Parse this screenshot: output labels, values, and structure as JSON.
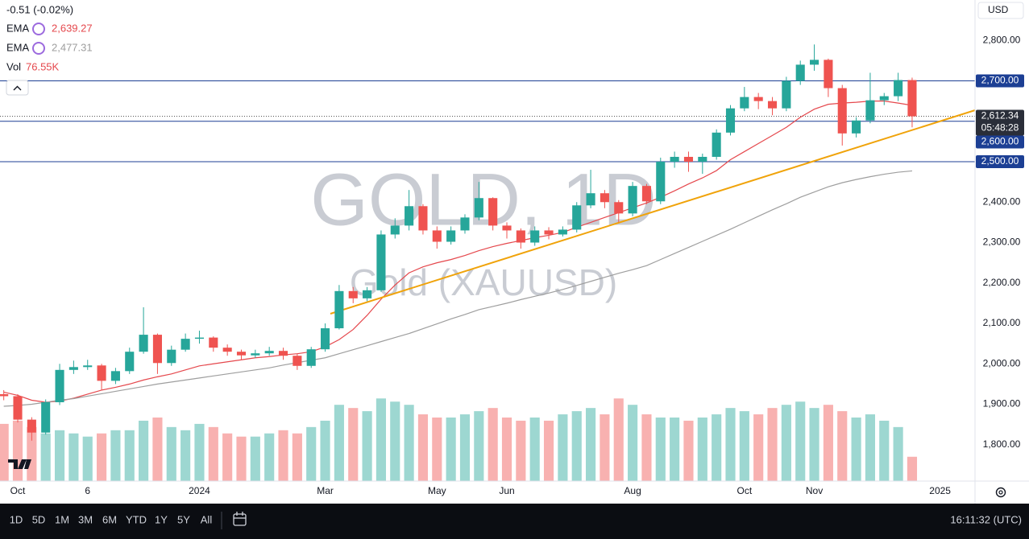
{
  "chart_data": {
    "type": "candlestick",
    "title": "GOLD, 1D",
    "subtitle": "Gold (XAUUSD)",
    "change_label": "-0.51 (-0.02%)",
    "currency": "USD",
    "up_color": "#26a69a",
    "down_color": "#ef5350",
    "categories": [
      null,
      "Oct",
      null,
      null,
      null,
      null,
      "6",
      null,
      null,
      null,
      null,
      null,
      null,
      null,
      "2024",
      null,
      null,
      null,
      null,
      null,
      null,
      null,
      null,
      "Mar",
      null,
      null,
      null,
      null,
      null,
      null,
      null,
      "May",
      null,
      null,
      null,
      null,
      "Jun",
      null,
      null,
      null,
      null,
      null,
      null,
      null,
      null,
      "Aug",
      null,
      null,
      null,
      null,
      null,
      null,
      null,
      "Oct",
      null,
      null,
      null,
      null,
      "Nov",
      null,
      null,
      null,
      null,
      null,
      null,
      null,
      null,
      "2025",
      null,
      null
    ],
    "open": [
      1925,
      1920,
      1862,
      1830,
      1905,
      1985,
      1992,
      1996,
      1958,
      1982,
      2030,
      2072,
      2002,
      2035,
      2062,
      2065,
      2040,
      2030,
      2021,
      2026,
      2032,
      2020,
      1995,
      2036,
      2088,
      2180,
      2162,
      2182,
      2320,
      2342,
      2390,
      2330,
      2302,
      2330,
      2362,
      2410,
      2342,
      2330,
      2300,
      2330,
      2320,
      2332,
      2392,
      2422,
      2400,
      2372,
      2440,
      2402,
      2500,
      2512,
      2500,
      2512,
      2572,
      2632,
      2660,
      2650,
      2632,
      2700,
      2740,
      2752,
      2682,
      2570,
      2602,
      2652,
      2662,
      2702,
      null,
      null,
      null,
      null
    ],
    "high": [
      1935,
      1925,
      1868,
      1912,
      2000,
      2008,
      2010,
      2000,
      1990,
      2040,
      2140,
      2075,
      2045,
      2075,
      2082,
      2068,
      2048,
      2035,
      2035,
      2042,
      2040,
      2025,
      2042,
      2100,
      2195,
      2190,
      2190,
      2330,
      2360,
      2430,
      2395,
      2340,
      2340,
      2370,
      2450,
      2412,
      2350,
      2335,
      2340,
      2338,
      2340,
      2400,
      2480,
      2430,
      2405,
      2450,
      2445,
      2510,
      2525,
      2525,
      2520,
      2580,
      2640,
      2685,
      2670,
      2660,
      2710,
      2750,
      2790,
      2755,
      2690,
      2610,
      2720,
      2670,
      2720,
      2708,
      null,
      null,
      null,
      null
    ],
    "low": [
      1910,
      1855,
      1810,
      1825,
      1898,
      1975,
      1985,
      1935,
      1950,
      1975,
      2025,
      1975,
      1995,
      2030,
      2050,
      2030,
      2020,
      2010,
      2015,
      2020,
      2010,
      1985,
      1990,
      2030,
      2085,
      2150,
      2155,
      2178,
      2310,
      2330,
      2320,
      2285,
      2295,
      2322,
      2355,
      2330,
      2310,
      2285,
      2292,
      2308,
      2315,
      2325,
      2385,
      2385,
      2350,
      2365,
      2395,
      2395,
      2485,
      2475,
      2470,
      2505,
      2565,
      2625,
      2630,
      2615,
      2625,
      2690,
      2725,
      2660,
      2540,
      2560,
      2595,
      2640,
      2650,
      2585,
      null,
      null,
      null,
      null
    ],
    "close": [
      1920,
      1862,
      1830,
      1905,
      1985,
      1992,
      1996,
      1958,
      1982,
      2030,
      2072,
      2002,
      2035,
      2062,
      2065,
      2040,
      2030,
      2021,
      2026,
      2032,
      2020,
      1995,
      2036,
      2088,
      2180,
      2162,
      2182,
      2320,
      2342,
      2390,
      2330,
      2302,
      2330,
      2362,
      2410,
      2342,
      2330,
      2300,
      2330,
      2320,
      2332,
      2392,
      2422,
      2400,
      2372,
      2440,
      2402,
      2500,
      2512,
      2500,
      2512,
      2572,
      2632,
      2660,
      2650,
      2632,
      2700,
      2740,
      2752,
      2682,
      2570,
      2602,
      2652,
      2662,
      2702,
      2612.34,
      null,
      null,
      null,
      null
    ],
    "last_price_label": "2,612.34",
    "countdown": "05:48:28",
    "volume": {
      "name": "Vol",
      "value_label": "76.55K",
      "ylim": [
        0,
        400
      ],
      "values": [
        180,
        190,
        170,
        150,
        160,
        150,
        140,
        150,
        160,
        160,
        190,
        200,
        170,
        160,
        180,
        170,
        150,
        140,
        140,
        150,
        160,
        150,
        170,
        190,
        240,
        230,
        220,
        260,
        250,
        240,
        210,
        200,
        200,
        210,
        220,
        230,
        200,
        190,
        200,
        190,
        210,
        220,
        230,
        210,
        260,
        240,
        210,
        200,
        200,
        190,
        200,
        210,
        230,
        220,
        210,
        230,
        240,
        250,
        230,
        240,
        220,
        200,
        210,
        190,
        170,
        76.55,
        null,
        null,
        null,
        null
      ]
    },
    "lines": [
      {
        "name": "EMA",
        "color": "#e5484d",
        "value_label": "2,639.27",
        "values": [
          1930,
          1922,
          1910,
          1905,
          1908,
          1915,
          1925,
          1935,
          1942,
          1950,
          1960,
          1968,
          1975,
          1985,
          1995,
          2000,
          2005,
          2010,
          2015,
          2018,
          2022,
          2025,
          2030,
          2042,
          2060,
          2085,
          2120,
          2160,
          2195,
          2225,
          2240,
          2250,
          2258,
          2268,
          2280,
          2290,
          2298,
          2305,
          2312,
          2318,
          2325,
          2338,
          2350,
          2362,
          2374,
          2386,
          2398,
          2412,
          2428,
          2445,
          2460,
          2478,
          2505,
          2525,
          2545,
          2565,
          2585,
          2610,
          2630,
          2642,
          2645,
          2647,
          2650,
          2650,
          2645,
          2639.27,
          null,
          null,
          null,
          null
        ]
      },
      {
        "name": "EMA",
        "color": "#9e9e9e",
        "value_label": "2,477.31",
        "values": [
          1895,
          1897,
          1900,
          1905,
          1910,
          1914,
          1920,
          1926,
          1932,
          1938,
          1944,
          1950,
          1955,
          1960,
          1965,
          1970,
          1975,
          1980,
          1985,
          1990,
          1997,
          2003,
          2009,
          2015,
          2025,
          2035,
          2045,
          2055,
          2065,
          2075,
          2087,
          2099,
          2111,
          2122,
          2134,
          2142,
          2150,
          2159,
          2167,
          2175,
          2184,
          2194,
          2204,
          2214,
          2224,
          2233,
          2243,
          2258,
          2273,
          2288,
          2303,
          2318,
          2333,
          2349,
          2365,
          2381,
          2396,
          2412,
          2425,
          2438,
          2448,
          2456,
          2463,
          2469,
          2474,
          2477.31,
          null,
          null,
          null,
          null
        ]
      }
    ],
    "levels": [
      {
        "value": 2700,
        "label": "2,700.00"
      },
      {
        "value": 2600,
        "label": "2,600.00"
      },
      {
        "value": 2500,
        "label": "2,500.00"
      }
    ],
    "level_color": "#1c3f94",
    "ylim": [
      1710,
      2900
    ],
    "yticks": [
      {
        "value": 1800,
        "label": "1,800.00"
      },
      {
        "value": 1900,
        "label": "1,900.00"
      },
      {
        "value": 2000,
        "label": "2,000.00"
      },
      {
        "value": 2100,
        "label": "2,100.00"
      },
      {
        "value": 2200,
        "label": "2,200.00"
      },
      {
        "value": 2300,
        "label": "2,300.00"
      },
      {
        "value": 2400,
        "label": "2,400.00"
      },
      {
        "value": 2500,
        "label": "2,500.00"
      },
      {
        "value": 2600,
        "label": "2,600.00"
      },
      {
        "value": 2700,
        "label": "2,700.00"
      },
      {
        "value": 2800,
        "label": "2,800.00"
      }
    ]
  },
  "toolbar": {
    "ranges": [
      "1D",
      "5D",
      "1M",
      "3M",
      "6M",
      "YTD",
      "1Y",
      "5Y",
      "All"
    ],
    "clock": "16:11:32 (UTC)"
  }
}
